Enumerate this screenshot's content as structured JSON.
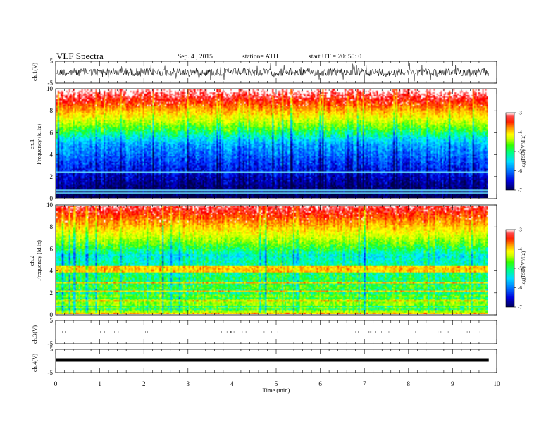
{
  "header": {
    "title": "VLF  Spectra",
    "date": "Sep. 4  , 2015",
    "station": "station= ATH",
    "start_ut": "start  UT  =   20: 50: 0"
  },
  "colors": {
    "spectrogram_scale": [
      "#000066",
      "#0000cc",
      "#0066ff",
      "#00ccff",
      "#00ff99",
      "#33ff00",
      "#ccff00",
      "#ffff00",
      "#ff9900",
      "#ff3300",
      "#ff0000",
      "#ffffff"
    ]
  },
  "chart_data": [
    {
      "type": "line",
      "name": "ch1-waveform",
      "ylabel": "ch.1(V)",
      "ylim": [
        -5,
        5
      ],
      "yticks": [
        "5",
        "-5"
      ],
      "xlim": [
        0,
        10
      ]
    },
    {
      "type": "heatmap",
      "name": "ch1-spectrogram",
      "ylabel_channel": "ch.1",
      "ylabel": "Frequency  (kHz)",
      "ylim": [
        0,
        10
      ],
      "yticks": [
        "10",
        "8",
        "6",
        "4",
        "2",
        "0"
      ],
      "xlim": [
        0,
        10
      ],
      "data_end_min": 9.8,
      "colorbar": {
        "label": "log(PSD)(V²/Hz)",
        "range": [
          -7,
          -3
        ],
        "ticks": [
          "-3",
          "-4",
          "-5",
          "-6",
          "-7"
        ]
      }
    },
    {
      "type": "heatmap",
      "name": "ch2-spectrogram",
      "ylabel_channel": "ch.2",
      "ylabel": "Frequency  (kHz)",
      "ylim": [
        0,
        10
      ],
      "yticks": [
        "10",
        "8",
        "6",
        "4",
        "2",
        "0"
      ],
      "xlim": [
        0,
        10
      ],
      "data_end_min": 9.8,
      "colorbar": {
        "label": "log(PSD)(V²/Hz)",
        "range": [
          -7,
          -3
        ],
        "ticks": [
          "-3",
          "-4",
          "-5",
          "-6",
          "-7"
        ]
      }
    },
    {
      "type": "line",
      "name": "ch3-waveform",
      "ylabel": "ch.3(V)",
      "ylim": [
        -5,
        5
      ],
      "yticks": [
        "5",
        "-5"
      ],
      "xlim": [
        0,
        10
      ]
    },
    {
      "type": "line",
      "name": "ch4-waveform",
      "ylabel": "ch.4(V)",
      "ylim": [
        -5,
        5
      ],
      "yticks": [
        "5",
        "-5"
      ],
      "xlim": [
        0,
        10
      ],
      "xlabel": "Time  (min)",
      "xticks": [
        "0",
        "1",
        "2",
        "3",
        "4",
        "5",
        "6",
        "7",
        "8",
        "9",
        "10"
      ]
    }
  ]
}
